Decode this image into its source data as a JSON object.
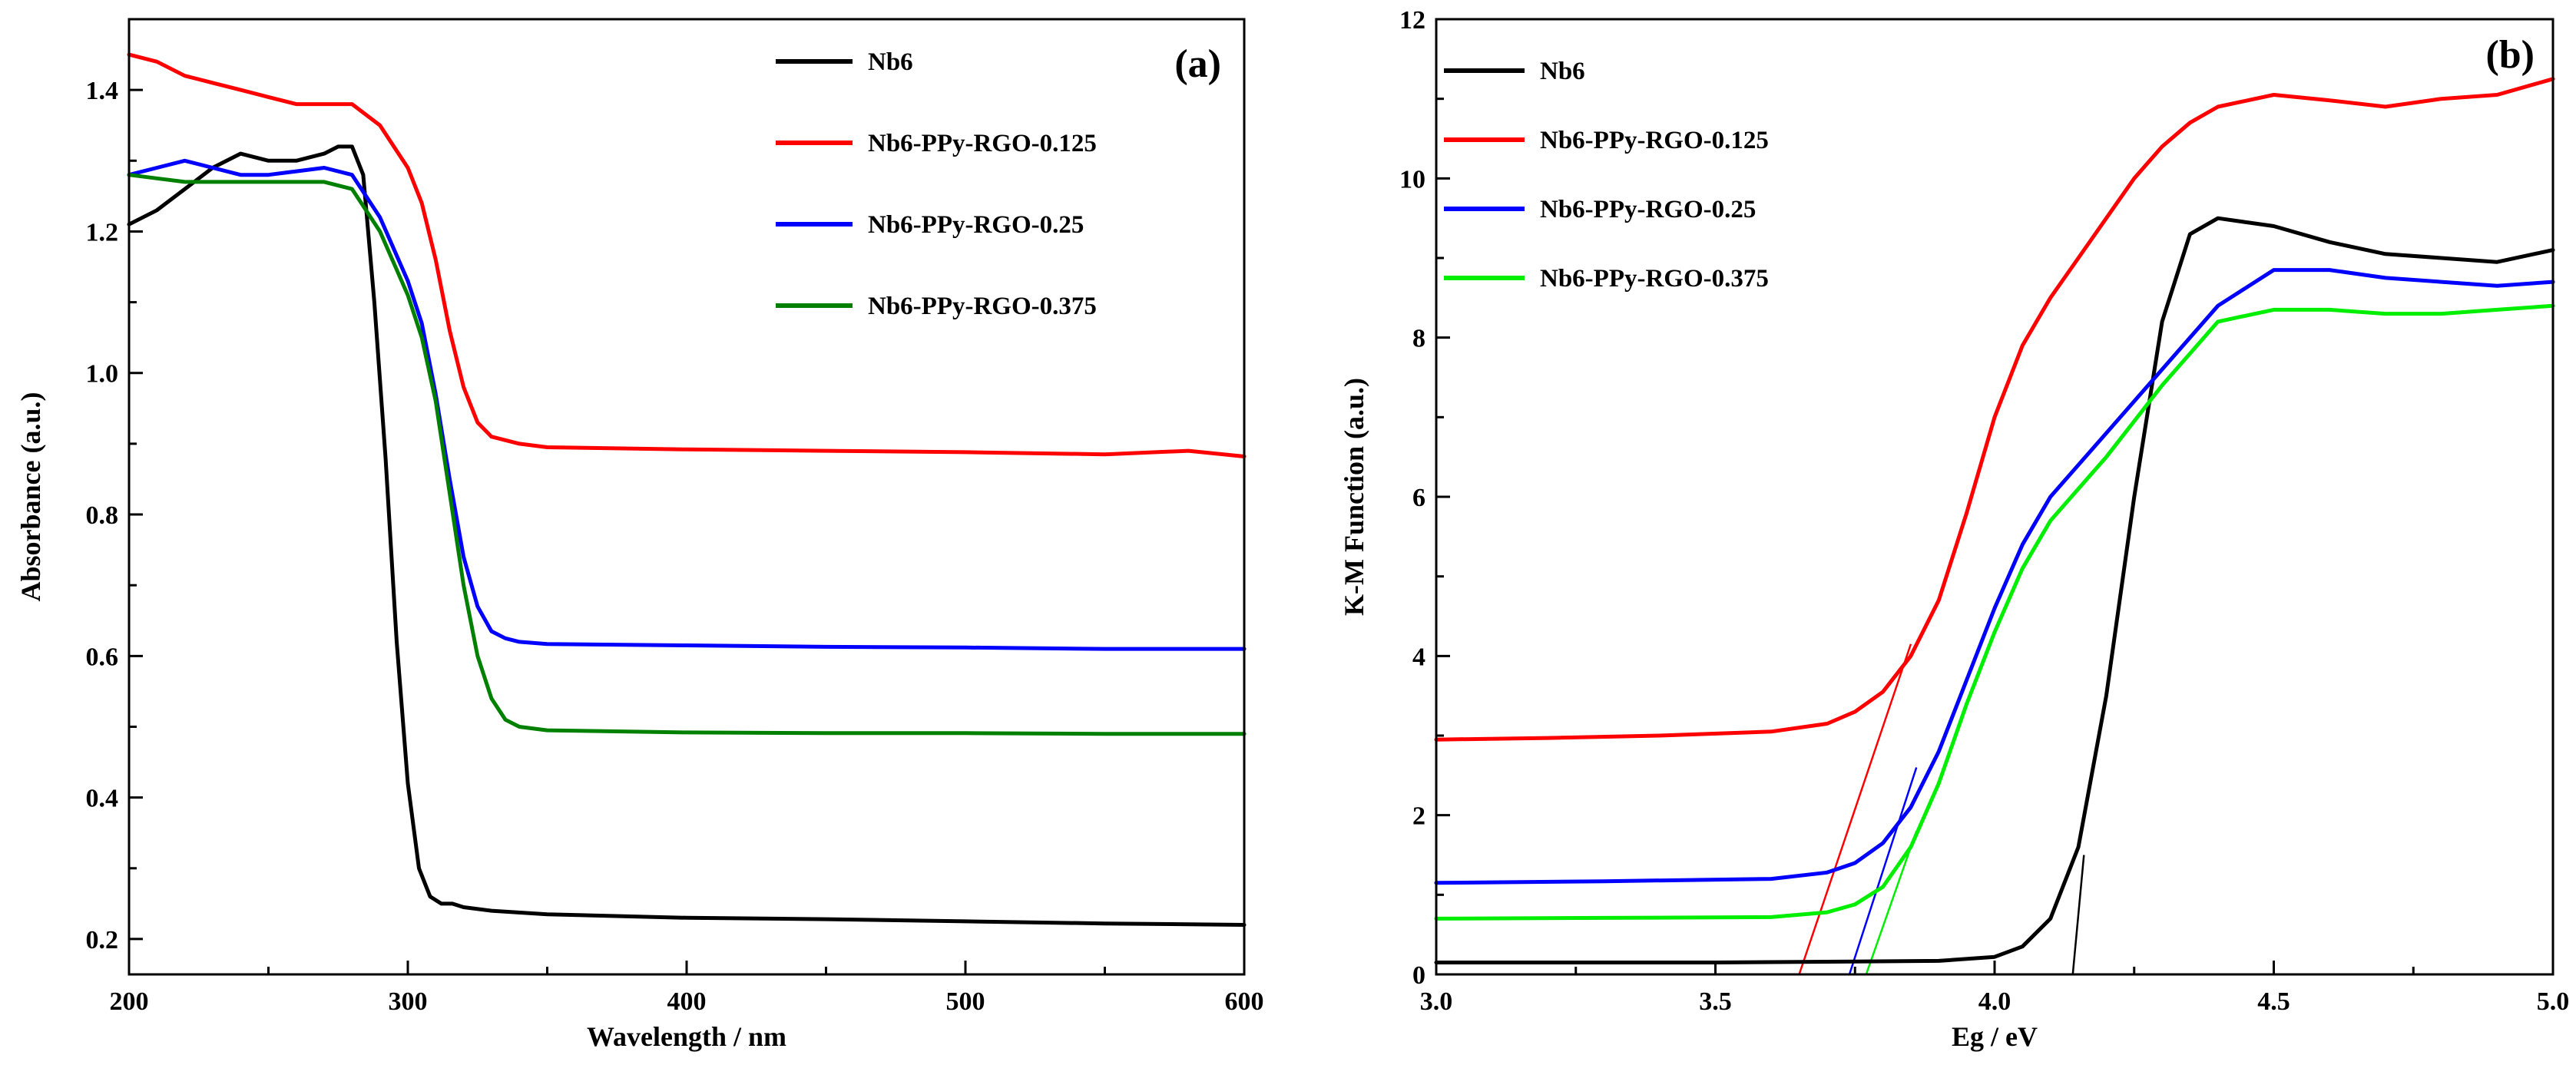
{
  "chart_data": [
    {
      "panel": "(a)",
      "type": "line",
      "xlabel": "Wavelength / nm",
      "ylabel": "Absorbance (a.u.)",
      "xlim": [
        200,
        600
      ],
      "ylim": [
        0.15,
        1.5
      ],
      "xticks": [
        "200",
        "300",
        "400",
        "500",
        "600"
      ],
      "yticks": [
        "0.2",
        "0.4",
        "0.6",
        "0.8",
        "1.0",
        "1.2",
        "1.4"
      ],
      "legend": "top-right",
      "series": [
        {
          "name": "Nb6",
          "color": "#000000",
          "x": [
            200,
            210,
            220,
            230,
            240,
            250,
            260,
            270,
            275,
            280,
            284,
            288,
            292,
            296,
            300,
            304,
            308,
            312,
            316,
            320,
            330,
            350,
            400,
            450,
            500,
            550,
            600
          ],
          "y": [
            1.21,
            1.23,
            1.26,
            1.29,
            1.31,
            1.3,
            1.3,
            1.31,
            1.32,
            1.32,
            1.28,
            1.1,
            0.88,
            0.62,
            0.42,
            0.3,
            0.26,
            0.25,
            0.25,
            0.245,
            0.24,
            0.235,
            0.23,
            0.228,
            0.225,
            0.222,
            0.22
          ]
        },
        {
          "name": "Nb6-PPy-RGO-0.125",
          "color": "#ff0000",
          "x": [
            200,
            210,
            220,
            230,
            240,
            250,
            260,
            270,
            280,
            290,
            295,
            300,
            305,
            310,
            315,
            320,
            325,
            330,
            340,
            350,
            400,
            450,
            500,
            550,
            580,
            600
          ],
          "y": [
            1.45,
            1.44,
            1.42,
            1.41,
            1.4,
            1.39,
            1.38,
            1.38,
            1.38,
            1.35,
            1.32,
            1.29,
            1.24,
            1.16,
            1.06,
            0.98,
            0.93,
            0.91,
            0.9,
            0.895,
            0.892,
            0.89,
            0.888,
            0.885,
            0.89,
            0.882
          ]
        },
        {
          "name": "Nb6-PPy-RGO-0.25",
          "color": "#0000ff",
          "x": [
            200,
            210,
            220,
            230,
            240,
            250,
            260,
            270,
            280,
            290,
            300,
            305,
            310,
            315,
            320,
            325,
            330,
            335,
            340,
            350,
            400,
            450,
            500,
            550,
            600
          ],
          "y": [
            1.28,
            1.29,
            1.3,
            1.29,
            1.28,
            1.28,
            1.285,
            1.29,
            1.28,
            1.22,
            1.13,
            1.07,
            0.97,
            0.85,
            0.74,
            0.67,
            0.635,
            0.625,
            0.62,
            0.617,
            0.615,
            0.613,
            0.612,
            0.61,
            0.61
          ]
        },
        {
          "name": "Nb6-PPy-RGO-0.375",
          "color": "#008000",
          "x": [
            200,
            210,
            220,
            230,
            240,
            250,
            260,
            270,
            280,
            290,
            300,
            305,
            310,
            315,
            320,
            325,
            330,
            335,
            340,
            350,
            400,
            450,
            500,
            550,
            600
          ],
          "y": [
            1.28,
            1.275,
            1.27,
            1.27,
            1.27,
            1.27,
            1.27,
            1.27,
            1.26,
            1.2,
            1.11,
            1.05,
            0.96,
            0.83,
            0.7,
            0.6,
            0.54,
            0.51,
            0.5,
            0.495,
            0.492,
            0.491,
            0.491,
            0.49,
            0.49
          ]
        }
      ]
    },
    {
      "panel": "(b)",
      "type": "line",
      "xlabel": "Eg / eV",
      "ylabel": "K-M Function (a.u.)",
      "xlim": [
        3.0,
        5.0
      ],
      "ylim": [
        0,
        12
      ],
      "xticks": [
        "3.0",
        "3.5",
        "4.0",
        "4.5",
        "5.0"
      ],
      "yticks": [
        "0",
        "2",
        "4",
        "6",
        "8",
        "10",
        "12"
      ],
      "legend": "top-left",
      "series": [
        {
          "name": "Nb6",
          "color": "#000000",
          "x": [
            3.0,
            3.5,
            3.9,
            4.0,
            4.05,
            4.1,
            4.15,
            4.2,
            4.25,
            4.3,
            4.35,
            4.4,
            4.45,
            4.5,
            4.6,
            4.7,
            4.8,
            4.9,
            5.0
          ],
          "y": [
            0.15,
            0.15,
            0.17,
            0.22,
            0.35,
            0.7,
            1.6,
            3.5,
            6.0,
            8.2,
            9.3,
            9.5,
            9.45,
            9.4,
            9.2,
            9.05,
            9.0,
            8.95,
            9.1
          ]
        },
        {
          "name": "Nb6-PPy-RGO-0.125",
          "color": "#ff0000",
          "x": [
            3.0,
            3.2,
            3.4,
            3.6,
            3.7,
            3.75,
            3.8,
            3.85,
            3.9,
            3.95,
            4.0,
            4.05,
            4.1,
            4.15,
            4.2,
            4.25,
            4.3,
            4.35,
            4.4,
            4.5,
            4.6,
            4.7,
            4.8,
            4.9,
            5.0
          ],
          "y": [
            2.95,
            2.97,
            3.0,
            3.05,
            3.15,
            3.3,
            3.55,
            4.0,
            4.7,
            5.8,
            7.0,
            7.9,
            8.5,
            9.0,
            9.5,
            10.0,
            10.4,
            10.7,
            10.9,
            11.05,
            10.98,
            10.9,
            11.0,
            11.05,
            11.25
          ]
        },
        {
          "name": "Nb6-PPy-RGO-0.25",
          "color": "#0000ff",
          "x": [
            3.0,
            3.3,
            3.6,
            3.7,
            3.75,
            3.8,
            3.85,
            3.9,
            3.95,
            4.0,
            4.05,
            4.1,
            4.2,
            4.3,
            4.4,
            4.5,
            4.6,
            4.7,
            4.8,
            4.9,
            5.0
          ],
          "y": [
            1.15,
            1.17,
            1.2,
            1.28,
            1.4,
            1.65,
            2.1,
            2.8,
            3.7,
            4.6,
            5.4,
            6.0,
            6.8,
            7.6,
            8.4,
            8.85,
            8.85,
            8.75,
            8.7,
            8.65,
            8.7
          ]
        },
        {
          "name": "Nb6-PPy-RGO-0.375",
          "color": "#00ee00",
          "x": [
            3.0,
            3.3,
            3.6,
            3.7,
            3.75,
            3.8,
            3.85,
            3.9,
            3.95,
            4.0,
            4.05,
            4.1,
            4.2,
            4.3,
            4.4,
            4.5,
            4.6,
            4.7,
            4.8,
            4.9,
            5.0
          ],
          "y": [
            0.7,
            0.71,
            0.72,
            0.78,
            0.88,
            1.1,
            1.6,
            2.4,
            3.4,
            4.3,
            5.1,
            5.7,
            6.5,
            7.4,
            8.2,
            8.35,
            8.35,
            8.3,
            8.3,
            8.35,
            8.4
          ]
        }
      ],
      "fit_lines": [
        {
          "color": "#ff0000",
          "x": [
            3.65,
            3.85
          ],
          "y": [
            0,
            4.15
          ]
        },
        {
          "color": "#0000ff",
          "x": [
            3.74,
            3.86
          ],
          "y": [
            0,
            2.6
          ]
        },
        {
          "color": "#00ee00",
          "x": [
            3.77,
            3.86
          ],
          "y": [
            0,
            1.8
          ]
        },
        {
          "color": "#000000",
          "x": [
            4.14,
            4.16
          ],
          "y": [
            0,
            1.5
          ]
        }
      ]
    }
  ]
}
